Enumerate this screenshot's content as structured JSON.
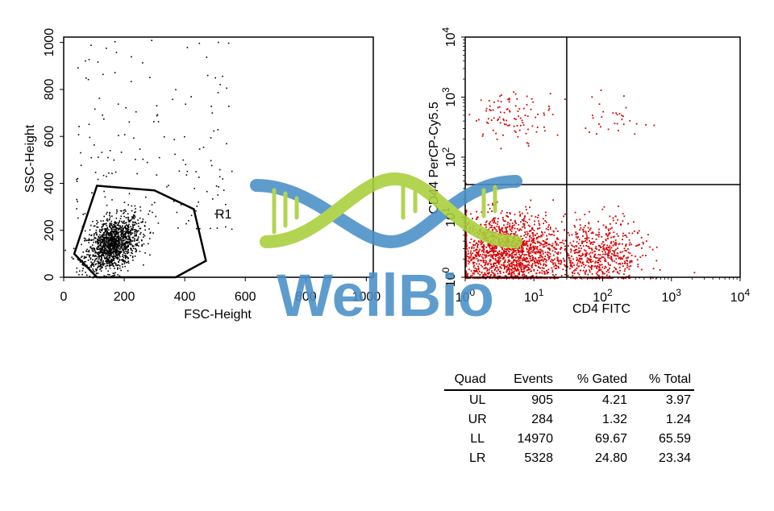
{
  "chart_data": [
    {
      "type": "scatter",
      "title": "",
      "xlabel": "FSC-Height",
      "ylabel": "SSC-Height",
      "xlim": [
        0,
        1023
      ],
      "ylim": [
        0,
        1023
      ],
      "x_ticks": [
        "0",
        "200",
        "400",
        "600",
        "800",
        "1000"
      ],
      "y_ticks": [
        "0",
        "200",
        "400",
        "600",
        "800",
        "1000"
      ],
      "gate": {
        "name": "R1",
        "polygon": [
          [
            110,
            0
          ],
          [
            35,
            100
          ],
          [
            110,
            390
          ],
          [
            300,
            370
          ],
          [
            430,
            290
          ],
          [
            470,
            70
          ],
          [
            370,
            0
          ]
        ]
      },
      "populations": [
        {
          "name": "main cluster",
          "center": [
            160,
            140
          ],
          "spread": [
            45,
            55
          ],
          "count": 1400
        },
        {
          "name": "sparse high side scatter",
          "x_range": [
            40,
            560
          ],
          "y_range": [
            200,
            1020
          ],
          "count": 170
        }
      ],
      "point_color": "#000000"
    },
    {
      "type": "scatter",
      "xlabel": "CD4 FITC",
      "ylabel": "CD44 PerCP-Cy5.5",
      "xscale": "log",
      "yscale": "log",
      "xlim": [
        1,
        10000
      ],
      "ylim": [
        1,
        10000
      ],
      "tick_base": "10",
      "tick_exponents": [
        "0",
        "1",
        "2",
        "3",
        "4"
      ],
      "quadrant_x": 30,
      "quadrant_y": 35,
      "point_color": "#d40000",
      "quadrants": [
        {
          "quad": "UL",
          "events": "905",
          "pct_gated": "4.21",
          "pct_total": "3.97"
        },
        {
          "quad": "UR",
          "events": "284",
          "pct_gated": "1.32",
          "pct_total": "1.24"
        },
        {
          "quad": "LL",
          "events": "14970",
          "pct_gated": "69.67",
          "pct_total": "65.59"
        },
        {
          "quad": "LR",
          "events": "5328",
          "pct_gated": "24.80",
          "pct_total": "23.34"
        }
      ]
    }
  ],
  "stats_table": {
    "headers": [
      "Quad",
      "Events",
      "% Gated",
      "% Total"
    ],
    "rows": [
      [
        "UL",
        "905",
        "4.21",
        "3.97"
      ],
      [
        "UR",
        "284",
        "1.32",
        "1.24"
      ],
      [
        "LL",
        "14970",
        "69.67",
        "65.59"
      ],
      [
        "LR",
        "5328",
        "24.80",
        "23.34"
      ]
    ]
  },
  "watermark": {
    "text": "WellBio",
    "colors": {
      "blue": "#4a8fc8",
      "green": "#a8cf3a"
    }
  }
}
